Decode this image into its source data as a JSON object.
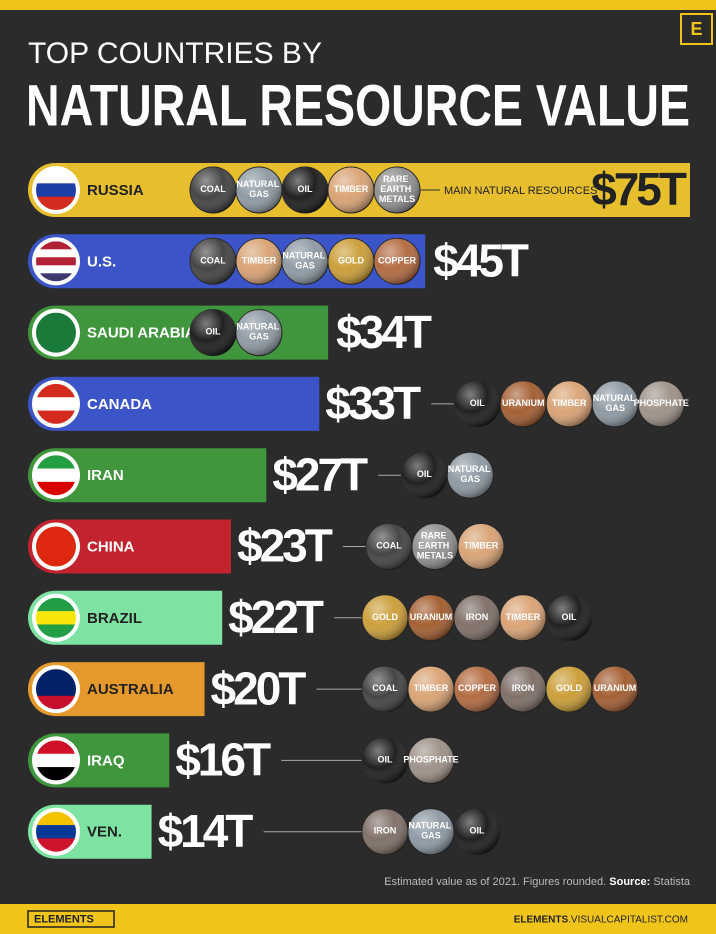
{
  "chart_data": {
    "type": "bar",
    "orientation": "horizontal",
    "title": "TOP COUNTRIES BY",
    "subtitle": "NATURAL RESOURCE VALUE",
    "categories": [
      "RUSSIA",
      "U.S.",
      "SAUDI ARABIA",
      "CANADA",
      "IRAN",
      "CHINA",
      "BRAZIL",
      "AUSTRALIA",
      "IRAQ",
      "VEN."
    ],
    "values": [
      75,
      45,
      34,
      33,
      27,
      23,
      22,
      20,
      16,
      14
    ],
    "value_labels": [
      "$75T",
      "$45T",
      "$34T",
      "$33T",
      "$27T",
      "$23T",
      "$22T",
      "$20T",
      "$16T",
      "$14T"
    ],
    "colors": [
      "#e6be2e",
      "#3b55c9",
      "#3f963c",
      "#3b55c9",
      "#3f963c",
      "#c2232e",
      "#7ee3a2",
      "#e5992c",
      "#3f963c",
      "#7ee3a2"
    ],
    "annotation": "MAIN NATURAL RESOURCES",
    "resources": [
      [
        {
          "name": "COAL",
          "color": "#3c3c3c"
        },
        {
          "name": "NATURAL GAS",
          "color": "#8a96a0"
        },
        {
          "name": "OIL",
          "color": "#151515"
        },
        {
          "name": "TIMBER",
          "color": "#d8a070"
        },
        {
          "name": "RARE EARTH METALS",
          "color": "#8c8c8c"
        }
      ],
      [
        {
          "name": "COAL",
          "color": "#3c3c3c"
        },
        {
          "name": "TIMBER",
          "color": "#d8a070"
        },
        {
          "name": "NATURAL GAS",
          "color": "#8a96a0"
        },
        {
          "name": "GOLD",
          "color": "#c99a30"
        },
        {
          "name": "COPPER",
          "color": "#b0653a"
        }
      ],
      [
        {
          "name": "OIL",
          "color": "#151515"
        },
        {
          "name": "NATURAL GAS",
          "color": "#8a96a0"
        }
      ],
      [
        {
          "name": "OIL",
          "color": "#151515"
        },
        {
          "name": "URANIUM",
          "color": "#a0582a"
        },
        {
          "name": "TIMBER",
          "color": "#d8a070"
        },
        {
          "name": "NATURAL GAS",
          "color": "#8a96a0"
        },
        {
          "name": "PHOSPHATE",
          "color": "#9a8e84"
        }
      ],
      [
        {
          "name": "OIL",
          "color": "#151515"
        },
        {
          "name": "NATURAL GAS",
          "color": "#8a96a0"
        }
      ],
      [
        {
          "name": "COAL",
          "color": "#3c3c3c"
        },
        {
          "name": "RARE EARTH METALS",
          "color": "#8c8c8c"
        },
        {
          "name": "TIMBER",
          "color": "#d8a070"
        }
      ],
      [
        {
          "name": "GOLD",
          "color": "#c99a30"
        },
        {
          "name": "URANIUM",
          "color": "#a0582a"
        },
        {
          "name": "IRON",
          "color": "#7a6a62"
        },
        {
          "name": "TIMBER",
          "color": "#d8a070"
        },
        {
          "name": "OIL",
          "color": "#151515"
        }
      ],
      [
        {
          "name": "COAL",
          "color": "#3c3c3c"
        },
        {
          "name": "TIMBER",
          "color": "#d8a070"
        },
        {
          "name": "COPPER",
          "color": "#b0653a"
        },
        {
          "name": "IRON",
          "color": "#7a6a62"
        },
        {
          "name": "GOLD",
          "color": "#c99a30"
        },
        {
          "name": "URANIUM",
          "color": "#a0582a"
        }
      ],
      [
        {
          "name": "OIL",
          "color": "#151515"
        },
        {
          "name": "PHOSPHATE",
          "color": "#9a8e84"
        }
      ],
      [
        {
          "name": "IRON",
          "color": "#7a6a62"
        },
        {
          "name": "NATURAL GAS",
          "color": "#8a96a0"
        },
        {
          "name": "OIL",
          "color": "#151515"
        }
      ]
    ],
    "note": "Estimated value as of 2021. Figures rounded.",
    "source_label": "Source:",
    "source": "Statista"
  },
  "footer": {
    "logo": "E",
    "brand": "ELEMENTS",
    "url_bold": "ELEMENTS",
    "url": ".VISUALCAPITALIST.COM"
  }
}
